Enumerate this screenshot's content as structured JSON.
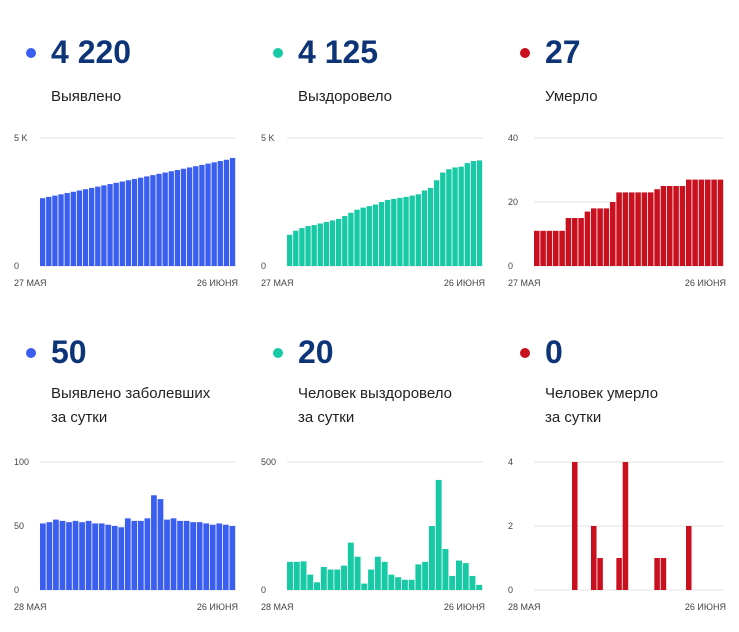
{
  "colors": {
    "blue": "#3a5ef0",
    "teal": "#17c9a5",
    "red": "#c9101f",
    "grid": "#e3e3e3",
    "number": "#0e3478"
  },
  "panels": [
    {
      "value": "4 220",
      "label_lines": [
        "Выявлено"
      ],
      "color": "blue",
      "chart_data": {
        "type": "bar",
        "series": [
          {
            "values": [
              2650,
              2700,
              2750,
              2800,
              2850,
              2900,
              2950,
              3000,
              3050,
              3100,
              3150,
              3200,
              3250,
              3300,
              3350,
              3400,
              3450,
              3500,
              3550,
              3600,
              3650,
              3700,
              3750,
              3800,
              3850,
              3900,
              3950,
              4000,
              4050,
              4100,
              4150,
              4220
            ]
          }
        ],
        "ylim": [
          0,
          5000
        ],
        "yticks": [
          "0",
          "5 K"
        ],
        "xticks": [
          "27 МАЯ",
          "26 ИЮНЯ"
        ]
      }
    },
    {
      "value": "4 125",
      "label_lines": [
        "Выздоровело"
      ],
      "color": "teal",
      "chart_data": {
        "type": "bar",
        "series": [
          {
            "values": [
              1220,
              1380,
              1480,
              1560,
              1600,
              1660,
              1720,
              1780,
              1840,
              1950,
              2080,
              2200,
              2280,
              2340,
              2400,
              2500,
              2580,
              2620,
              2660,
              2700,
              2750,
              2800,
              2950,
              3050,
              3350,
              3650,
              3780,
              3850,
              3880,
              4020,
              4100,
              4125
            ]
          }
        ],
        "ylim": [
          0,
          5000
        ],
        "yticks": [
          "0",
          "5 K"
        ],
        "xticks": [
          "27 МАЯ",
          "26 ИЮНЯ"
        ]
      }
    },
    {
      "value": "27",
      "label_lines": [
        "Умерло"
      ],
      "color": "red",
      "chart_data": {
        "type": "bar",
        "series": [
          {
            "values": [
              11,
              11,
              11,
              11,
              11,
              15,
              15,
              15,
              17,
              18,
              18,
              18,
              20,
              23,
              23,
              23,
              23,
              23,
              23,
              24,
              25,
              25,
              25,
              25,
              27,
              27,
              27,
              27,
              27,
              27
            ]
          }
        ],
        "ylim": [
          0,
          40
        ],
        "yticks": [
          "0",
          "20",
          "40"
        ],
        "xticks": [
          "27 МАЯ",
          "26 ИЮНЯ"
        ]
      }
    },
    {
      "value": "50",
      "label_lines": [
        "Выявлено заболевших",
        "за сутки"
      ],
      "color": "blue",
      "chart_data": {
        "type": "bar",
        "series": [
          {
            "values": [
              52,
              53,
              55,
              54,
              53,
              54,
              53,
              54,
              52,
              52,
              51,
              50,
              49,
              56,
              54,
              54,
              56,
              74,
              71,
              55,
              56,
              54,
              54,
              53,
              53,
              52,
              51,
              52,
              51,
              50
            ]
          }
        ],
        "ylim": [
          0,
          100
        ],
        "yticks": [
          "0",
          "50",
          "100"
        ],
        "xticks": [
          "28 МАЯ",
          "26 ИЮНЯ"
        ]
      }
    },
    {
      "value": "20",
      "label_lines": [
        "Человек выздоровело",
        "за сутки"
      ],
      "color": "teal",
      "chart_data": {
        "type": "bar",
        "series": [
          {
            "values": [
              110,
              110,
              112,
              60,
              30,
              90,
              80,
              80,
              95,
              185,
              130,
              25,
              80,
              130,
              110,
              60,
              50,
              40,
              40,
              100,
              110,
              250,
              430,
              160,
              55,
              115,
              105,
              55,
              20
            ]
          }
        ],
        "ylim": [
          0,
          500
        ],
        "yticks": [
          "0",
          "500"
        ],
        "xticks": [
          "28 МАЯ",
          "26 ИЮНЯ"
        ]
      }
    },
    {
      "value": "0",
      "label_lines": [
        "Человек умерло",
        "за сутки"
      ],
      "color": "red",
      "chart_data": {
        "type": "bar",
        "series": [
          {
            "values": [
              0,
              0,
              0,
              0,
              0,
              0,
              4,
              0,
              0,
              2,
              1,
              0,
              0,
              1,
              4,
              0,
              0,
              0,
              0,
              1,
              1,
              0,
              0,
              0,
              2,
              0,
              0,
              0,
              0,
              0
            ]
          }
        ],
        "ylim": [
          0,
          4
        ],
        "yticks": [
          "0",
          "2",
          "4"
        ],
        "xticks": [
          "28 МАЯ",
          "26 ИЮНЯ"
        ]
      }
    }
  ]
}
